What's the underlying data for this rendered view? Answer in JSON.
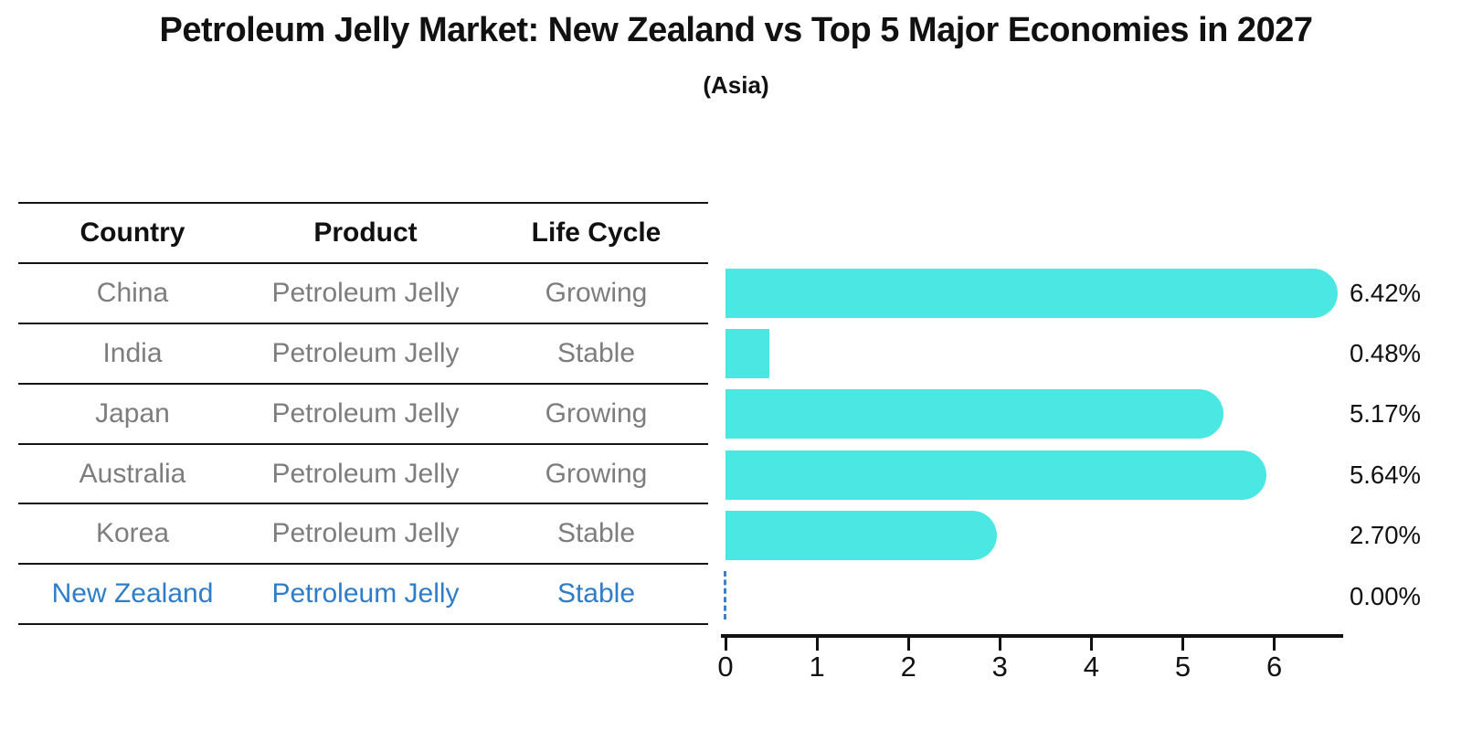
{
  "title": "Petroleum Jelly Market: New Zealand vs Top 5 Major Economies in 2027",
  "subtitle": "(Asia)",
  "table": {
    "headers": [
      "Country",
      "Product",
      "Life Cycle"
    ],
    "rows": [
      {
        "country": "China",
        "product": "Petroleum Jelly",
        "life_cycle": "Growing",
        "highlight": false
      },
      {
        "country": "India",
        "product": "Petroleum Jelly",
        "life_cycle": "Stable",
        "highlight": false
      },
      {
        "country": "Japan",
        "product": "Petroleum Jelly",
        "life_cycle": "Growing",
        "highlight": false
      },
      {
        "country": "Australia",
        "product": "Petroleum Jelly",
        "life_cycle": "Growing",
        "highlight": false
      },
      {
        "country": "Korea",
        "product": "Petroleum Jelly",
        "life_cycle": "Stable",
        "highlight": false
      },
      {
        "country": "New Zealand",
        "product": "Petroleum Jelly",
        "life_cycle": "Stable",
        "highlight": true
      }
    ]
  },
  "chart_data": {
    "type": "bar",
    "orientation": "horizontal",
    "title": "Petroleum Jelly Market: New Zealand vs Top 5 Major Economies in 2027",
    "subtitle": "(Asia)",
    "categories": [
      "China",
      "India",
      "Japan",
      "Australia",
      "Korea",
      "New Zealand"
    ],
    "values": [
      6.42,
      0.48,
      5.17,
      5.64,
      2.7,
      0.0
    ],
    "value_labels": [
      "6.42%",
      "0.48%",
      "5.17%",
      "5.64%",
      "2.70%",
      "0.00%"
    ],
    "x_ticks": [
      "0",
      "1",
      "2",
      "3",
      "4",
      "5",
      "6"
    ],
    "xlim": [
      0,
      6.76
    ],
    "grid": false,
    "legend": null,
    "highlighted_category": "New Zealand",
    "zero_value_marker": "dashed-line"
  },
  "colors": {
    "bar": "#4BE8E3",
    "highlight_text": "#2E7DC9",
    "zero_dash": "#3B82C4",
    "row_text": "#7D7D7D",
    "header_text": "#111111",
    "axis": "#111111",
    "background": "#FFFFFF"
  }
}
